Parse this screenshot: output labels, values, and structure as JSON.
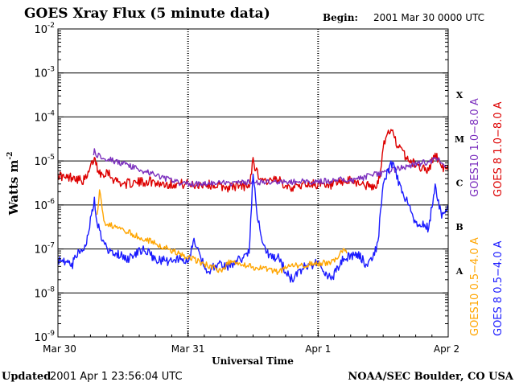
{
  "header": {
    "title": "GOES Xray Flux (5 minute data)",
    "begin_label": "Begin:",
    "begin_value": "2001 Mar 30 0000 UTC"
  },
  "footer": {
    "updated_label": "Updated",
    "updated_value": "2001 Apr  1 23:56:04 UTC",
    "source": "NOAA/SEC Boulder, CO USA"
  },
  "chart_data": {
    "type": "line",
    "title": "GOES Xray Flux (5 minute data)",
    "xlabel": "Universal Time",
    "ylabel": "Watts m",
    "ylabel_superscript": "-2",
    "y_scale": "log",
    "ylim": [
      1e-09,
      0.01
    ],
    "y_ticks": [
      {
        "base": "10",
        "exp": "-2",
        "value": 0.01
      },
      {
        "base": "10",
        "exp": "-3",
        "value": 0.001
      },
      {
        "base": "10",
        "exp": "-4",
        "value": 0.0001
      },
      {
        "base": "10",
        "exp": "-5",
        "value": 1e-05
      },
      {
        "base": "10",
        "exp": "-6",
        "value": 1e-06
      },
      {
        "base": "10",
        "exp": "-7",
        "value": 1e-07
      },
      {
        "base": "10",
        "exp": "-8",
        "value": 1e-08
      },
      {
        "base": "10",
        "exp": "-9",
        "value": 1e-09
      }
    ],
    "x_range_days": [
      0,
      3
    ],
    "x_ticks": [
      {
        "label": "Mar 30",
        "day": 0
      },
      {
        "label": "Mar 31",
        "day": 1
      },
      {
        "label": "Apr 1",
        "day": 2
      },
      {
        "label": "Apr 2",
        "day": 3
      }
    ],
    "grid": true,
    "flare_classes": [
      {
        "label": "X",
        "level": 0.0001
      },
      {
        "label": "M",
        "level": 1e-05
      },
      {
        "label": "C",
        "level": 1e-06
      },
      {
        "label": "B",
        "level": 1e-07
      },
      {
        "label": "A",
        "level": 1e-08
      }
    ],
    "legend_placement": "right",
    "legend": [
      {
        "label": "GOES10 1.0−8.0 A",
        "color": "#7b2fbe"
      },
      {
        "label": "GOES 8 1.0−8.0 A",
        "color": "#dd0000"
      },
      {
        "label": "GOES10 0.5−4.0 A",
        "color": "#ffa500"
      },
      {
        "label": "GOES 8 0.5−4.0 A",
        "color": "#1a1aff"
      }
    ],
    "series": [
      {
        "name": "GOES 8 1.0−8.0 A",
        "color": "#dd0000",
        "x": [
          0.0,
          0.06,
          0.12,
          0.18,
          0.22,
          0.28,
          0.31,
          0.34,
          0.38,
          0.42,
          0.5,
          0.6,
          0.7,
          0.8,
          0.9,
          1.0,
          1.04,
          1.1,
          1.2,
          1.3,
          1.4,
          1.47,
          1.5,
          1.52,
          1.56,
          1.6,
          1.7,
          1.8,
          1.9,
          2.0,
          2.06,
          2.15,
          2.25,
          2.35,
          2.4,
          2.45,
          2.48,
          2.5,
          2.54,
          2.58,
          2.62,
          2.7,
          2.8,
          2.85,
          2.9,
          2.95,
          3.0
        ],
        "y": [
          5e-06,
          4e-06,
          4.5e-06,
          3.5e-06,
          4e-06,
          1.2e-05,
          6e-06,
          5e-06,
          6e-06,
          4e-06,
          3e-06,
          3.2e-06,
          3.5e-06,
          3e-06,
          3e-06,
          3e-06,
          2.8e-06,
          3e-06,
          2.8e-06,
          2.5e-06,
          2.8e-06,
          2.5e-06,
          1.2e-05,
          6e-06,
          4e-06,
          3.5e-06,
          3.5e-06,
          2.5e-06,
          3e-06,
          3e-06,
          2.5e-06,
          3e-06,
          3.5e-06,
          3e-06,
          2.5e-06,
          2.5e-06,
          6e-06,
          2e-05,
          5e-05,
          4e-05,
          2e-05,
          1e-05,
          7e-06,
          6e-06,
          1.5e-05,
          7e-06,
          6e-06
        ]
      },
      {
        "name": "GOES10 1.0−8.0 A",
        "color": "#7b2fbe",
        "x": [
          0.27,
          0.28,
          0.29,
          0.95,
          1.0,
          1.01,
          2.1,
          2.18,
          2.24,
          2.92,
          2.95,
          2.98
        ],
        "y": [
          1.4e-05,
          1.9e-05,
          1.4e-05,
          3e-06,
          3.2e-06,
          3e-06,
          3.5e-06,
          4e-06,
          3.5e-06,
          1.1e-05,
          9e-06,
          8e-06
        ]
      },
      {
        "name": "GOES 8 0.5−4.0 A",
        "color": "#1a1aff",
        "x": [
          0.0,
          0.04,
          0.1,
          0.18,
          0.22,
          0.28,
          0.3,
          0.34,
          0.38,
          0.45,
          0.55,
          0.65,
          0.75,
          0.85,
          0.95,
          1.0,
          1.04,
          1.1,
          1.15,
          1.25,
          1.3,
          1.4,
          1.47,
          1.5,
          1.54,
          1.6,
          1.7,
          1.75,
          1.8,
          1.9,
          2.0,
          2.06,
          2.1,
          2.15,
          2.2,
          2.3,
          2.38,
          2.42,
          2.46,
          2.5,
          2.56,
          2.65,
          2.75,
          2.85,
          2.9,
          2.95,
          3.0
        ],
        "y": [
          6e-08,
          5e-08,
          4e-08,
          1e-07,
          1.3e-07,
          1.5e-06,
          4e-07,
          1.5e-07,
          1e-07,
          8e-08,
          6e-08,
          1e-07,
          6e-08,
          5e-08,
          6e-08,
          5e-08,
          1.5e-07,
          6e-08,
          3e-08,
          5e-08,
          4e-08,
          6e-08,
          8e-08,
          5e-06,
          4e-07,
          8e-08,
          6e-08,
          3e-08,
          2e-08,
          4e-08,
          5e-08,
          3e-08,
          2e-08,
          4e-08,
          6e-08,
          8e-08,
          4e-08,
          6e-08,
          1.5e-07,
          3e-06,
          1e-05,
          2e-06,
          4e-07,
          3e-07,
          3e-06,
          5e-07,
          1e-06
        ]
      },
      {
        "name": "GOES10 0.5−4.0 A",
        "color": "#ffa500",
        "x": [
          0.3,
          0.32,
          0.34,
          0.36,
          1.22,
          1.26,
          1.3,
          1.7,
          1.74,
          1.78,
          2.1,
          2.14,
          2.18,
          2.2,
          2.22
        ],
        "y": [
          6e-07,
          2.2e-06,
          8e-07,
          4e-07,
          3.5e-08,
          3e-08,
          5e-08,
          3e-08,
          3.5e-08,
          4e-08,
          5e-08,
          6e-08,
          9e-08,
          1e-07,
          8e-08
        ]
      }
    ]
  }
}
